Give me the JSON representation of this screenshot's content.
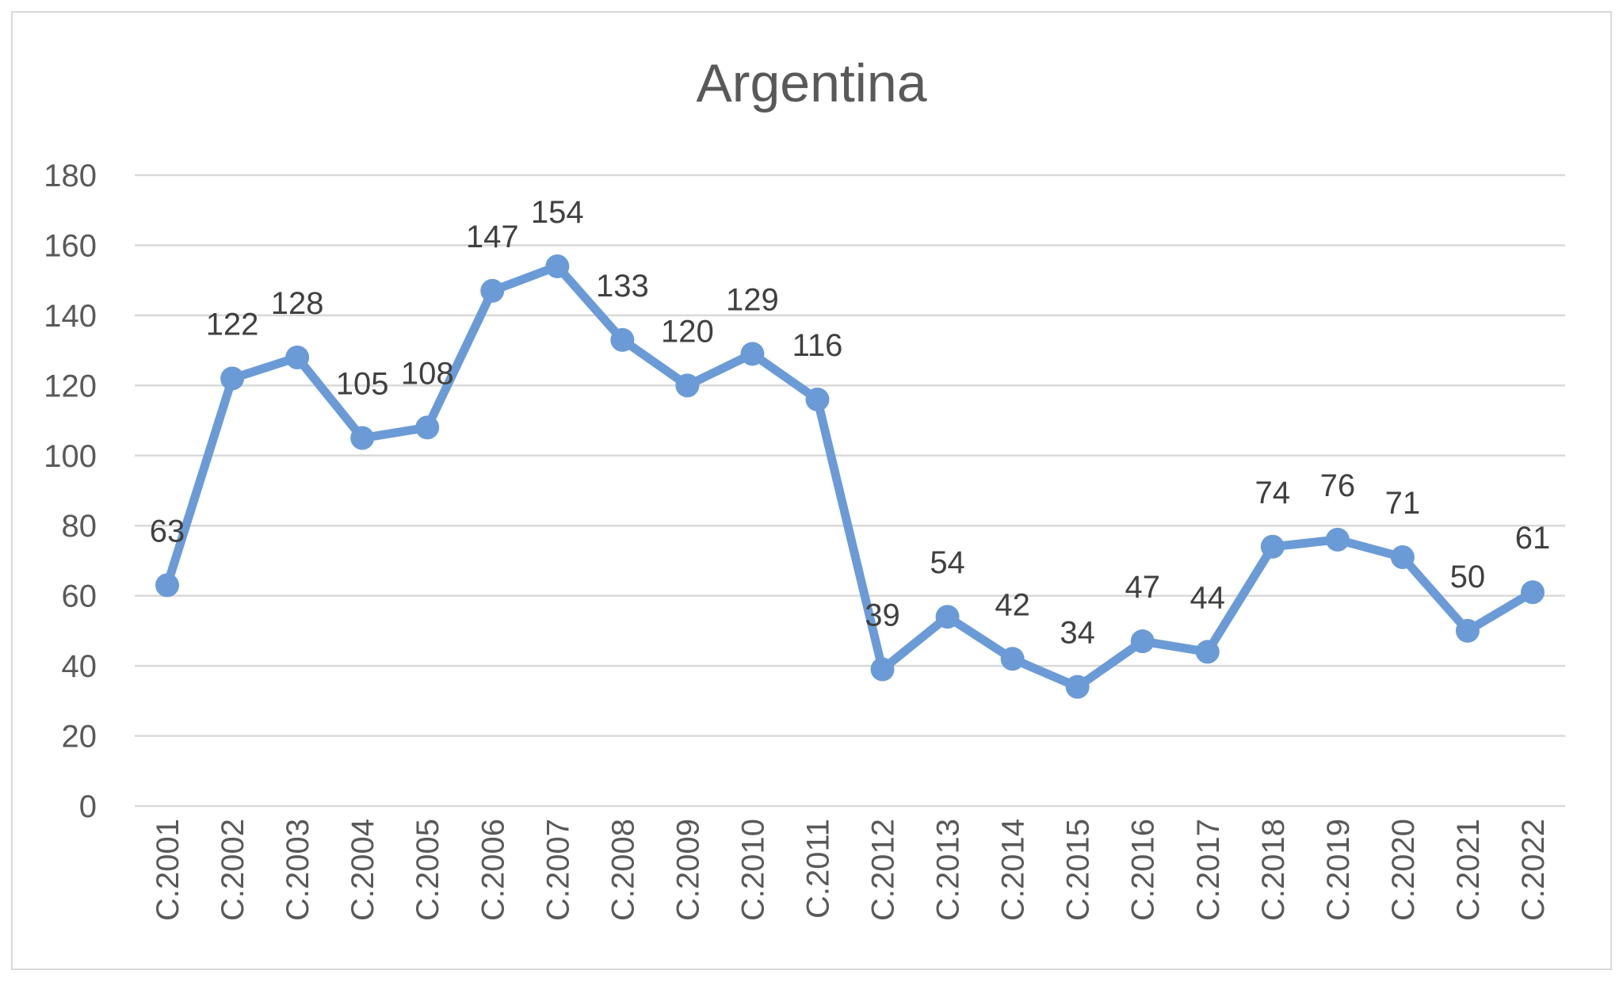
{
  "chart_data": {
    "type": "line",
    "title": "Argentina",
    "xlabel": "",
    "ylabel": "",
    "categories": [
      "C.2001",
      "C.2002",
      "C.2003",
      "C.2004",
      "C.2005",
      "C.2006",
      "C.2007",
      "C.2008",
      "C.2009",
      "C.2010",
      "C.2011",
      "C.2012",
      "C.2013",
      "C.2014",
      "C.2015",
      "C.2016",
      "C.2017",
      "C.2018",
      "C.2019",
      "C.2020",
      "C.2021",
      "C.2022"
    ],
    "series": [
      {
        "values": [
          63,
          122,
          128,
          105,
          108,
          147,
          154,
          133,
          120,
          129,
          116,
          39,
          54,
          42,
          34,
          47,
          44,
          74,
          76,
          71,
          50,
          61
        ]
      }
    ],
    "ylim": [
      0,
      180
    ],
    "yticks": [
      0,
      20,
      40,
      60,
      80,
      100,
      120,
      140,
      160,
      180
    ],
    "grid": true,
    "legend": "none",
    "color": "#6b9bd6"
  }
}
